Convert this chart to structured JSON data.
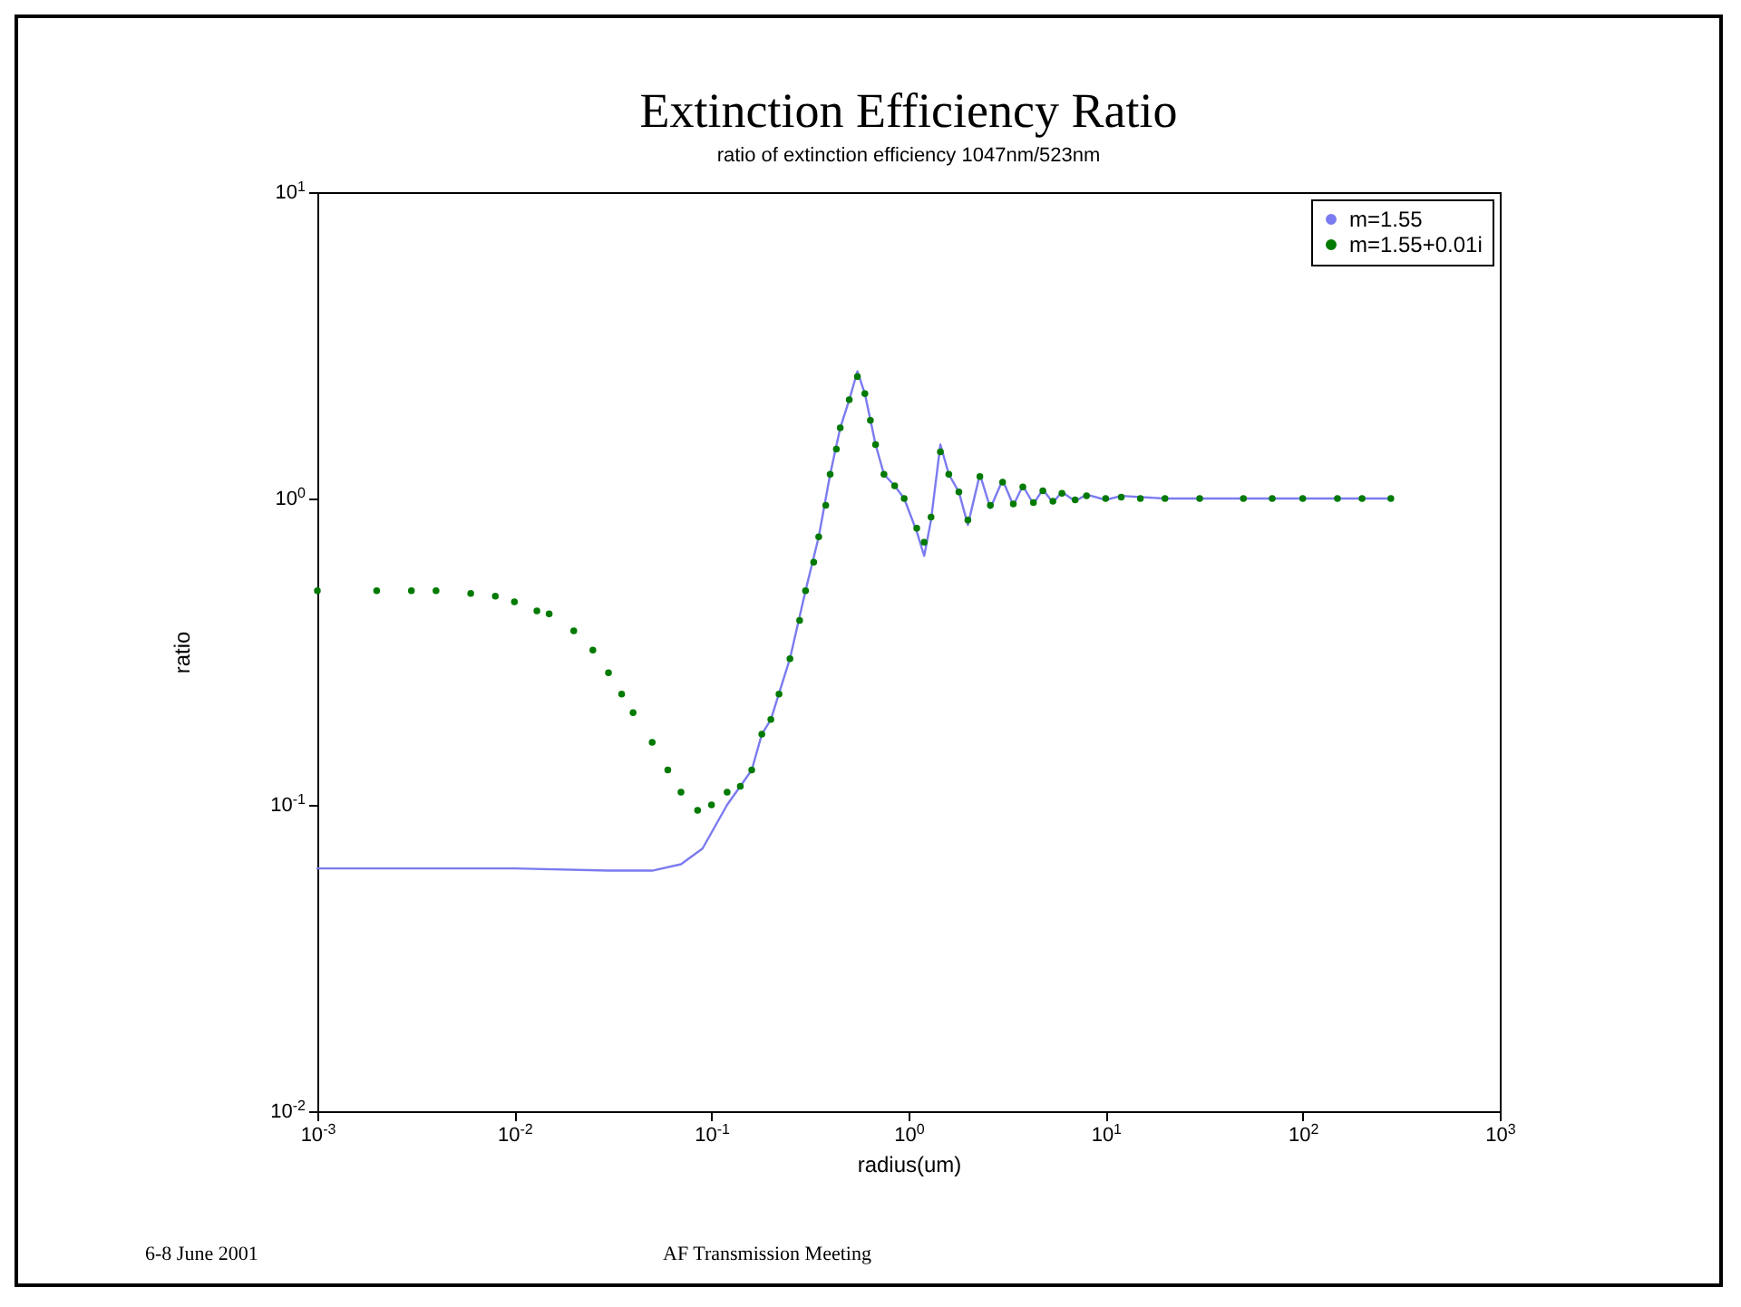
{
  "chart_data": {
    "type": "line",
    "title": "Extinction Efficiency Ratio",
    "subtitle": "ratio of extinction efficiency 1047nm/523nm",
    "xlabel": "radius(um)",
    "ylabel": "ratio",
    "log": "xy",
    "grid": false,
    "legend": "top right",
    "xlim": [
      0.001,
      1000
    ],
    "ylim": [
      0.01,
      10
    ],
    "xticks": [
      {
        "value": 0.001,
        "label": "10$^{-3}$"
      },
      {
        "value": 0.01,
        "label": "10$^{-2}$"
      },
      {
        "value": 0.1,
        "label": "10$^{-1}$"
      },
      {
        "value": 1,
        "label": "10$^{0}$"
      },
      {
        "value": 10,
        "label": "10$^{1}$"
      },
      {
        "value": 100,
        "label": "10$^{2}$"
      },
      {
        "value": 1000,
        "label": "10$^{3}$"
      }
    ],
    "yticks": [
      {
        "value": 0.01,
        "label": "10$^{-2}$"
      },
      {
        "value": 0.1,
        "label": "10$^{-1}$"
      },
      {
        "value": 1,
        "label": "10$^{0}$"
      },
      {
        "value": 10,
        "label": "10$^{1}$"
      }
    ],
    "series": [
      {
        "name": "m=1.55",
        "color": "#7b7bf0",
        "x": [
          0.001,
          0.003,
          0.01,
          0.03,
          0.05,
          0.07,
          0.09,
          0.12,
          0.14,
          0.16,
          0.18,
          0.2,
          0.25,
          0.3,
          0.35,
          0.4,
          0.45,
          0.5,
          0.55,
          0.6,
          0.68,
          0.75,
          0.85,
          0.95,
          1.1,
          1.2,
          1.3,
          1.45,
          1.6,
          1.8,
          2.0,
          2.3,
          2.6,
          3.0,
          3.4,
          3.8,
          4.3,
          4.8,
          5.4,
          6,
          7,
          8,
          10,
          12,
          20,
          100,
          280
        ],
        "values": [
          0.062,
          0.062,
          0.062,
          0.061,
          0.061,
          0.064,
          0.072,
          0.1,
          0.115,
          0.13,
          0.17,
          0.19,
          0.3,
          0.5,
          0.75,
          1.2,
          1.7,
          2.1,
          2.6,
          2.2,
          1.5,
          1.2,
          1.1,
          1.0,
          0.78,
          0.65,
          0.85,
          1.5,
          1.2,
          1.05,
          0.82,
          1.2,
          0.93,
          1.15,
          0.95,
          1.1,
          0.96,
          1.07,
          0.97,
          1.05,
          0.98,
          1.03,
          0.99,
          1.02,
          1.0,
          1.0,
          1.0
        ]
      },
      {
        "name": "m=1.55+0.01i",
        "type": "scatter",
        "color": "#007a00",
        "x": [
          0.001,
          0.002,
          0.003,
          0.004,
          0.006,
          0.008,
          0.01,
          0.013,
          0.015,
          0.02,
          0.025,
          0.03,
          0.035,
          0.04,
          0.05,
          0.06,
          0.07,
          0.085,
          0.1,
          0.12,
          0.14,
          0.16,
          0.18,
          0.2,
          0.22,
          0.25,
          0.28,
          0.3,
          0.33,
          0.35,
          0.38,
          0.4,
          0.43,
          0.45,
          0.5,
          0.55,
          0.6,
          0.64,
          0.68,
          0.75,
          0.85,
          0.95,
          1.1,
          1.2,
          1.3,
          1.45,
          1.6,
          1.8,
          2.0,
          2.3,
          2.6,
          3.0,
          3.4,
          3.8,
          4.3,
          4.8,
          5.4,
          6,
          7,
          8,
          10,
          12,
          15,
          20,
          30,
          50,
          70,
          100,
          150,
          200,
          280
        ],
        "values": [
          0.5,
          0.5,
          0.5,
          0.5,
          0.49,
          0.48,
          0.46,
          0.43,
          0.42,
          0.37,
          0.32,
          0.27,
          0.23,
          0.2,
          0.16,
          0.13,
          0.11,
          0.096,
          0.1,
          0.11,
          0.115,
          0.13,
          0.17,
          0.19,
          0.23,
          0.3,
          0.4,
          0.5,
          0.62,
          0.75,
          0.95,
          1.2,
          1.45,
          1.7,
          2.1,
          2.5,
          2.2,
          1.8,
          1.5,
          1.2,
          1.1,
          1.0,
          0.8,
          0.72,
          0.87,
          1.42,
          1.2,
          1.05,
          0.85,
          1.18,
          0.95,
          1.13,
          0.96,
          1.09,
          0.97,
          1.06,
          0.98,
          1.04,
          0.99,
          1.02,
          1.0,
          1.01,
          1.0,
          1.0,
          1.0,
          1.0,
          1.0,
          1.0,
          1.0,
          1.0,
          1.0
        ]
      }
    ],
    "annotations": [
      "6-8 June 2001",
      "AF Transmission Meeting"
    ]
  }
}
